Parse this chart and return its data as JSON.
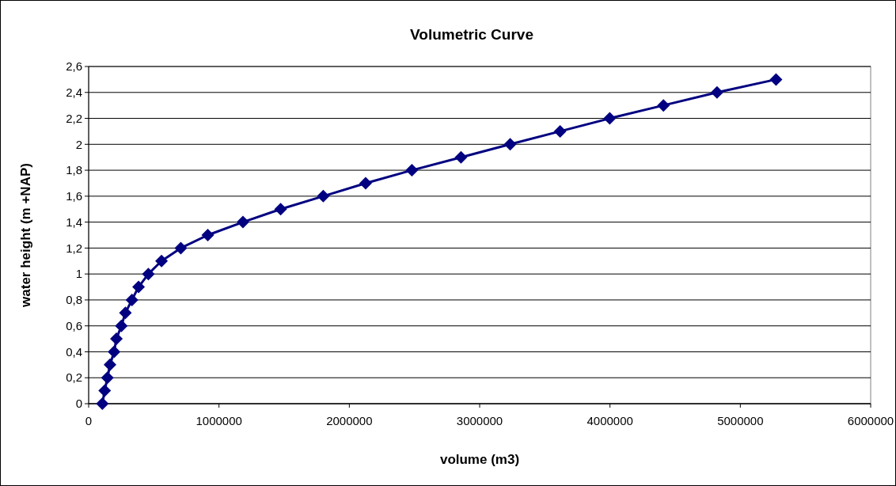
{
  "chart_data": {
    "type": "line",
    "title": "Volumetric Curve",
    "xlabel": "volume (m3)",
    "ylabel": "water height (m +NAP)",
    "x": [
      105000,
      123000,
      144000,
      164000,
      195000,
      213000,
      251000,
      282000,
      332000,
      383000,
      458000,
      559000,
      707000,
      914000,
      1184000,
      1473000,
      1800000,
      2125000,
      2480000,
      2857000,
      3234000,
      3617000,
      3998000,
      4410000,
      4821000,
      5274000
    ],
    "series": [
      {
        "color": "#000080",
        "values": [
          0,
          0.1,
          0.2,
          0.3,
          0.4,
          0.5,
          0.6,
          0.7,
          0.8,
          0.9,
          1,
          1.1,
          1.2,
          1.3,
          1.4,
          1.5,
          1.6,
          1.7,
          1.8,
          1.9,
          2,
          2.1,
          2.2,
          2.3,
          2.4,
          2.5
        ]
      }
    ],
    "xlim": [
      0,
      6000000
    ],
    "xticks": [
      0,
      1000000,
      2000000,
      3000000,
      4000000,
      5000000,
      6000000
    ],
    "ylim": [
      0,
      2.6
    ],
    "yticks": [
      {
        "value": 0,
        "label": "0"
      },
      {
        "value": 0.2,
        "label": "0,2"
      },
      {
        "value": 0.4,
        "label": "0,4"
      },
      {
        "value": 0.6,
        "label": "0,6"
      },
      {
        "value": 0.8,
        "label": "0,8"
      },
      {
        "value": 1,
        "label": "1"
      },
      {
        "value": 1.2,
        "label": "1,2"
      },
      {
        "value": 1.4,
        "label": "1,4"
      },
      {
        "value": 1.6,
        "label": "1,6"
      },
      {
        "value": 1.8,
        "label": "1,8"
      },
      {
        "value": 2,
        "label": "2"
      },
      {
        "value": 2.2,
        "label": "2,2"
      },
      {
        "value": 2.4,
        "label": "2,4"
      },
      {
        "value": 2.6,
        "label": "2,6"
      }
    ],
    "grid": "y",
    "marker": "diamond",
    "line_style": "solid"
  }
}
